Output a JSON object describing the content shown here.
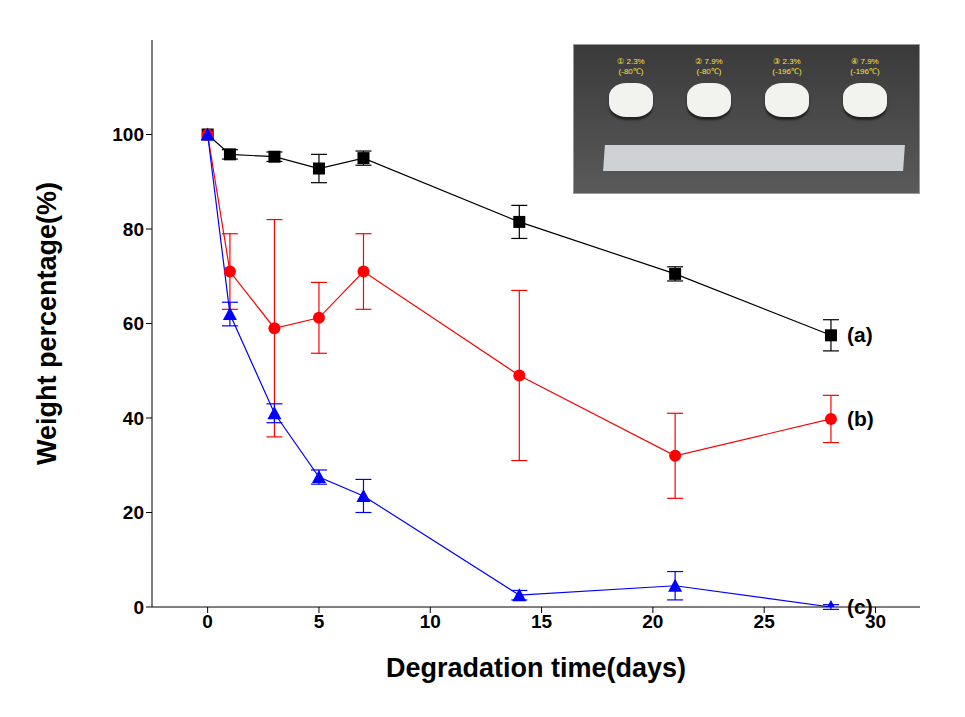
{
  "chart_data": {
    "type": "line",
    "x_label": "Degradation time(days)",
    "y_label": "Weight percentage(%)",
    "x": [
      0,
      1,
      3,
      5,
      7,
      14,
      21,
      28
    ],
    "xlim": [
      -2.5,
      32
    ],
    "xticks": [
      0,
      5,
      10,
      15,
      20,
      25,
      30
    ],
    "ylim": [
      0,
      120
    ],
    "yticks": [
      0,
      20,
      40,
      60,
      80,
      100
    ],
    "grid": false,
    "series": [
      {
        "name": "(a)",
        "color": "#000000",
        "marker": "square",
        "values": [
          100,
          95.8,
          95.3,
          92.8,
          95,
          81.5,
          70.5,
          57.5
        ],
        "errors": [
          0,
          1,
          1,
          3,
          1.5,
          3.5,
          1.5,
          3.3
        ]
      },
      {
        "name": "(b)",
        "color": "#ff0000",
        "marker": "circle",
        "values": [
          100,
          71,
          59,
          61.2,
          71,
          49,
          32,
          39.8
        ],
        "errors": [
          0,
          8,
          23,
          7.5,
          8,
          18,
          9,
          5
        ]
      },
      {
        "name": "(c)",
        "color": "#0000ff",
        "marker": "triangle",
        "values": [
          100,
          62,
          41,
          27.5,
          23.5,
          2.5,
          4.5,
          0
        ],
        "errors": [
          0,
          2.5,
          2,
          1.5,
          3.5,
          1,
          3,
          0.5
        ]
      }
    ],
    "annotations": [
      {
        "lines": [
          "① 2.3%",
          "(-80℃)"
        ]
      },
      {
        "lines": [
          "② 7.9%",
          "(-80℃)"
        ]
      },
      {
        "lines": [
          "③ 2.3%",
          "(-196℃)"
        ]
      },
      {
        "lines": [
          "④ 7.9%",
          "(-196℃)"
        ]
      }
    ]
  }
}
